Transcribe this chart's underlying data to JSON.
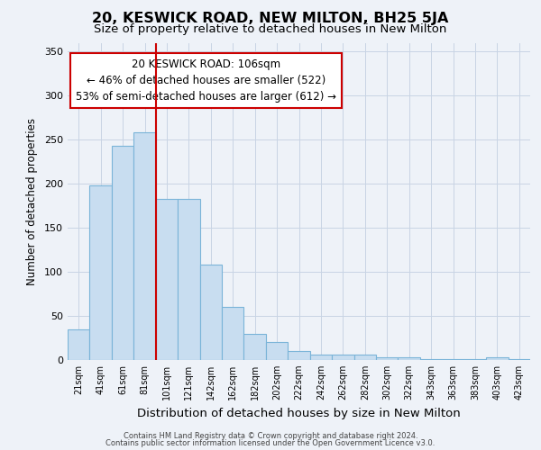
{
  "title": "20, KESWICK ROAD, NEW MILTON, BH25 5JA",
  "subtitle": "Size of property relative to detached houses in New Milton",
  "xlabel": "Distribution of detached houses by size in New Milton",
  "ylabel": "Number of detached properties",
  "categories": [
    "21sqm",
    "41sqm",
    "61sqm",
    "81sqm",
    "101sqm",
    "121sqm",
    "142sqm",
    "162sqm",
    "182sqm",
    "202sqm",
    "222sqm",
    "242sqm",
    "262sqm",
    "282sqm",
    "302sqm",
    "322sqm",
    "343sqm",
    "363sqm",
    "383sqm",
    "403sqm",
    "423sqm"
  ],
  "values": [
    35,
    198,
    243,
    258,
    183,
    183,
    108,
    60,
    30,
    20,
    10,
    6,
    6,
    6,
    3,
    3,
    1,
    1,
    1,
    3,
    1
  ],
  "bar_color": "#c8ddf0",
  "bar_edge_color": "#7ab4d8",
  "vline_x": 3.5,
  "vline_color": "#cc0000",
  "annotation_line1": "20 KESWICK ROAD: 106sqm",
  "annotation_line2": "← 46% of detached houses are smaller (522)",
  "annotation_line3": "53% of semi-detached houses are larger (612) →",
  "annotation_box_facecolor": "#ffffff",
  "annotation_box_edgecolor": "#cc0000",
  "ylim": [
    0,
    360
  ],
  "yticks": [
    0,
    50,
    100,
    150,
    200,
    250,
    300,
    350
  ],
  "title_fontsize": 11.5,
  "subtitle_fontsize": 9.5,
  "ylabel_fontsize": 8.5,
  "xlabel_fontsize": 9.5,
  "tick_fontsize": 8,
  "xtick_fontsize": 7,
  "footer_line1": "Contains HM Land Registry data © Crown copyright and database right 2024.",
  "footer_line2": "Contains public sector information licensed under the Open Government Licence v3.0.",
  "bg_color": "#eef2f8",
  "grid_color": "#c8d4e4"
}
